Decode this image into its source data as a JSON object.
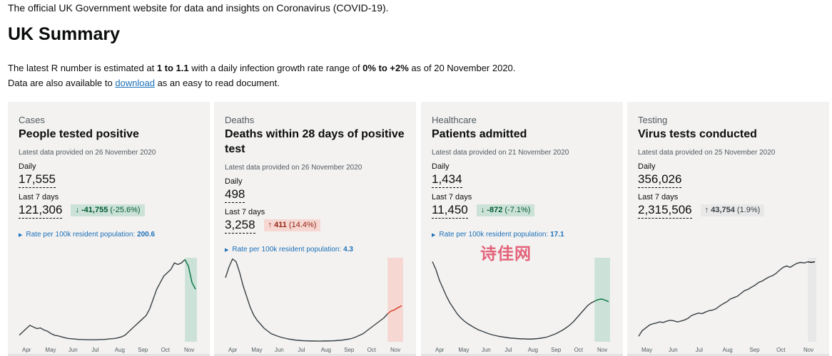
{
  "intro": "The official UK Government website for data and insights on Coronavirus (COVID-19).",
  "page_title": "UK Summary",
  "r_line": {
    "pre": "The latest R number is estimated at ",
    "r_range": "1 to 1.1",
    "mid": " with a daily infection growth rate range of ",
    "growth_range": "0% to +2%",
    "post": " as of 20 November 2020."
  },
  "download_line": {
    "pre": "Data are also available to ",
    "link": "download",
    "post": " as an easy to read document."
  },
  "cards": [
    {
      "category": "Cases",
      "title": "People tested positive",
      "latest": "Latest data provided on 26 November 2020",
      "daily_label": "Daily",
      "daily_value": "17,555",
      "week_label": "Last 7 days",
      "week_value": "121,306",
      "change_arrow": "↓",
      "change_value": "-41,755",
      "change_pct": "(-25.6%)",
      "change_color": "#cce2d8",
      "rate_label": "Rate per 100k resident population:",
      "rate_value": "200.6",
      "months": [
        "Apr",
        "May",
        "Jun",
        "Jul",
        "Aug",
        "Sep",
        "Oct",
        "Nov"
      ],
      "series": [
        2,
        3,
        4,
        5,
        4.5,
        4,
        4.2,
        3.6,
        3.2,
        2.5,
        2,
        1.8,
        1.5,
        1.2,
        1,
        0.9,
        0.8,
        0.7,
        0.7,
        0.6,
        0.6,
        0.6,
        0.6,
        0.7,
        0.7,
        0.8,
        0.9,
        1,
        1.2,
        1.5,
        2,
        3,
        4,
        5,
        6,
        7,
        8,
        10,
        13,
        16,
        18,
        20,
        21,
        22,
        24,
        23.5,
        24,
        25,
        23,
        18,
        16
      ],
      "highlight_from": 47,
      "highlight_color": "#cce2d8",
      "tail_color": "#00703c",
      "ymax": 26
    },
    {
      "category": "Deaths",
      "title": "Deaths within 28 days of positive test",
      "latest": "Latest data provided on 26 November 2020",
      "daily_label": "Daily",
      "daily_value": "498",
      "week_label": "Last 7 days",
      "week_value": "3,258",
      "change_arrow": "↑",
      "change_value": "411",
      "change_pct": "(14.4%)",
      "change_color": "#f6d7d2",
      "rate_label": "Rate per 100k resident population:",
      "rate_value": "4.3",
      "months": [
        "Apr",
        "May",
        "Jun",
        "Jul",
        "Aug",
        "Sep",
        "Oct",
        "Nov"
      ],
      "series": [
        24,
        28,
        31,
        30,
        26,
        21,
        17,
        13,
        10,
        8,
        6.5,
        5,
        4,
        3,
        2.5,
        2,
        1.6,
        1.3,
        1,
        0.8,
        0.6,
        0.5,
        0.4,
        0.35,
        0.3,
        0.3,
        0.25,
        0.25,
        0.3,
        0.3,
        0.35,
        0.4,
        0.5,
        0.6,
        0.8,
        1,
        1.3,
        1.8,
        2.4,
        3,
        4,
        5,
        6,
        7,
        8,
        9,
        10.5,
        11.5,
        12,
        12.8,
        13.5
      ],
      "highlight_from": 46,
      "highlight_color": "#f6d7d2",
      "tail_color": "#d4351c",
      "ymax": 32
    },
    {
      "category": "Healthcare",
      "title": "Patients admitted",
      "latest": "Latest data provided on 21 November 2020",
      "daily_label": "Daily",
      "daily_value": "1,434",
      "week_label": "Last 7 days",
      "week_value": "11,450",
      "change_arrow": "↓",
      "change_value": "-872",
      "change_pct": "(-7.1%)",
      "change_color": "#cce2d8",
      "rate_label": "Rate per 100k resident population:",
      "rate_value": "17.1",
      "months": [
        "Apr",
        "May",
        "Jun",
        "Jul",
        "Aug",
        "Sep",
        "Oct",
        "Nov"
      ],
      "series": [
        30,
        27,
        23,
        20,
        17,
        14.5,
        12.5,
        10.5,
        9,
        7.8,
        6.8,
        6,
        5.2,
        4.5,
        4,
        3.5,
        3,
        2.6,
        2.3,
        2,
        1.8,
        1.6,
        1.4,
        1.3,
        1.2,
        1.1,
        1.1,
        1,
        1,
        1.1,
        1.2,
        1.4,
        1.6,
        2,
        2.5,
        3,
        3.7,
        4.4,
        5.3,
        6.3,
        7.5,
        9,
        10.5,
        12,
        13.5,
        14.5,
        15.2,
        15.8,
        16,
        15.6,
        15
      ],
      "highlight_from": 46,
      "highlight_color": "#cce2d8",
      "tail_color": "#00703c",
      "ymax": 32
    },
    {
      "category": "Testing",
      "title": "Virus tests conducted",
      "latest": "Latest data provided on 25 November 2020",
      "daily_label": "Daily",
      "daily_value": "356,026",
      "week_label": "Last 7 days",
      "week_value": "2,315,506",
      "change_arrow": "↑",
      "change_value": "43,754",
      "change_pct": "(1.9%)",
      "change_color": "#e8e8e8",
      "rate_label": "",
      "rate_value": "",
      "months": [
        "May",
        "Jun",
        "Jul",
        "Aug",
        "Sep",
        "Oct",
        "Nov"
      ],
      "series": [
        2,
        4,
        5,
        6,
        6.5,
        6.8,
        7.2,
        7,
        7.5,
        7.8,
        7.6,
        7.2,
        7.5,
        7.9,
        8.5,
        9.5,
        10,
        10.4,
        10.2,
        10.8,
        11.3,
        11.5,
        12,
        13,
        13.8,
        14.5,
        15.5,
        16,
        16.5,
        17.5,
        18.5,
        19,
        19.8,
        20.5,
        21.5,
        22,
        22.8,
        23.5,
        24,
        24.8,
        26,
        27,
        27.5,
        27,
        27.8,
        28.5,
        28.8,
        28.6,
        29,
        28.8,
        29
      ],
      "highlight_from": 48,
      "highlight_color": "#e8e8e8",
      "tail_color": "#0b0c0c",
      "ymax": 31
    }
  ],
  "watermark": "诗佳网"
}
